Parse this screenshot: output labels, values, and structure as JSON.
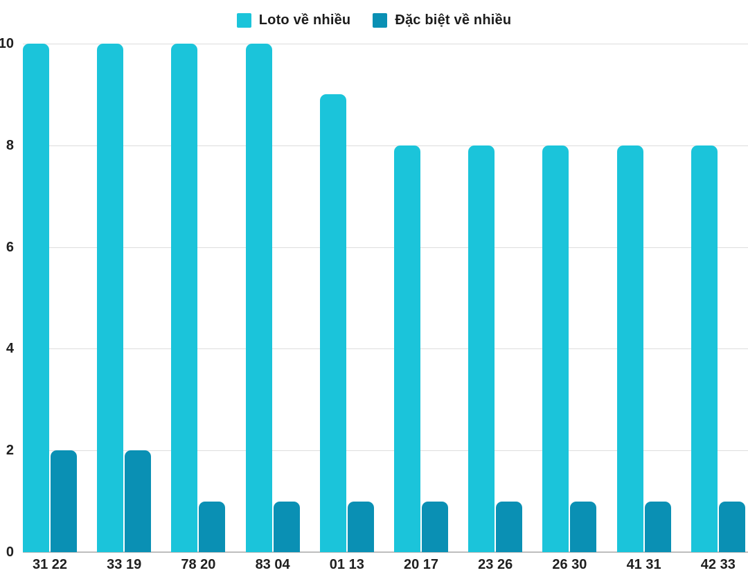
{
  "chart_data": {
    "type": "bar",
    "title": "",
    "xlabel": "",
    "ylabel": "",
    "categories": [
      "31 22",
      "33 19",
      "78 20",
      "83 04",
      "01 13",
      "20 17",
      "23 26",
      "26 30",
      "41 31",
      "42 33"
    ],
    "series": [
      {
        "name": "Loto về nhiều",
        "color": "#1bc4da",
        "values": [
          10,
          10,
          10,
          10,
          9,
          8,
          8,
          8,
          8,
          8
        ]
      },
      {
        "name": "Đặc biệt về nhiều",
        "color": "#0a90b4",
        "values": [
          2,
          2,
          1,
          1,
          1,
          1,
          1,
          1,
          1,
          1
        ]
      }
    ],
    "ylim": [
      0,
      10
    ],
    "yticks": [
      0,
      2,
      4,
      6,
      8,
      10
    ],
    "grid": true,
    "legend_position": "top",
    "colors": {
      "grid": "#dddddd",
      "axis": "#bdbdbd",
      "text": "#1f1f1f",
      "background": "#ffffff"
    }
  }
}
